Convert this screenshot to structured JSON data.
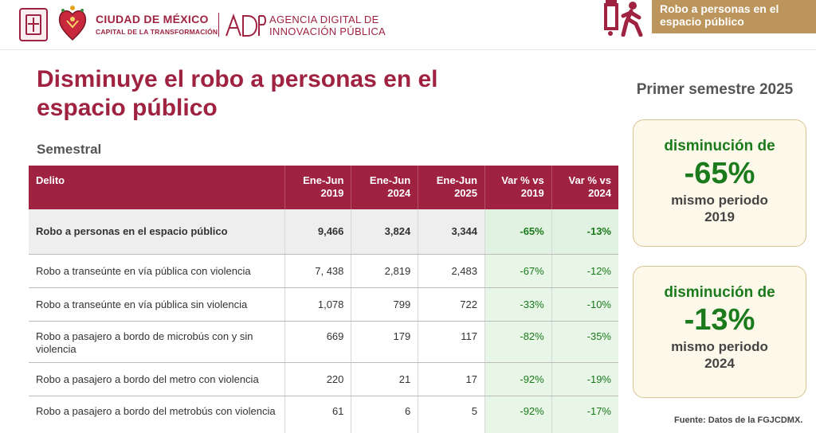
{
  "header": {
    "city_name": "CIUDAD DE MÉXICO",
    "city_tagline": "CAPITAL DE LA TRANSFORMACIÓN",
    "agency_name_1": "AGENCIA DIGITAL DE",
    "agency_name_2": "INNOVACIÓN PÚBLICA",
    "top_label": "Robo a personas en el espacio público",
    "brand_color": "#9f2241",
    "accent_color": "#bc955c",
    "icons": [
      "city-shield-icon",
      "heart-emblem-icon",
      "adip-logo-icon",
      "pedestrian-robbery-icon"
    ]
  },
  "title": "Disminuye el robo a personas en el espacio público",
  "subtitle": "Semestral",
  "table": {
    "headers": {
      "delito": "Delito",
      "col1_a": "Ene-Jun",
      "col1_b": "2019",
      "col2_a": "Ene-Jun",
      "col2_b": "2024",
      "col3_a": "Ene-Jun",
      "col3_b": "2025",
      "col4_a": "Var % vs",
      "col4_b": "2019",
      "col5_a": "Var % vs",
      "col5_b": "2024"
    },
    "rows": [
      {
        "delito": "Robo a personas en el espacio público",
        "y2019": "9,466",
        "y2024": "3,824",
        "y2025": "3,344",
        "var2019": "-65%",
        "var2024": "-13%"
      },
      {
        "delito": "Robo a transeúnte en vía pública con violencia",
        "y2019": "7, 438",
        "y2024": "2,819",
        "y2025": "2,483",
        "var2019": "-67%",
        "var2024": "-12%"
      },
      {
        "delito": "Robo a transeúnte en vía pública sin violencia",
        "y2019": "1,078",
        "y2024": "799",
        "y2025": "722",
        "var2019": "-33%",
        "var2024": "-10%"
      },
      {
        "delito": "Robo a pasajero a bordo de microbús con y sin violencia",
        "y2019": "669",
        "y2024": "179",
        "y2025": "117",
        "var2019": "-82%",
        "var2024": "-35%"
      },
      {
        "delito": "Robo a pasajero a bordo del metro con violencia",
        "y2019": "220",
        "y2024": "21",
        "y2025": "17",
        "var2019": "-92%",
        "var2024": "-19%"
      },
      {
        "delito": "Robo a pasajero a bordo del metrobús con violencia",
        "y2019": "61",
        "y2024": "6",
        "y2025": "5",
        "var2019": "-92%",
        "var2024": "-17%"
      }
    ]
  },
  "summary": {
    "period": "Primer semestre 2025",
    "card1": {
      "lead": "disminución de",
      "value": "-65%",
      "tail": "mismo periodo 2019"
    },
    "card2": {
      "lead": "disminución de",
      "value": "-13%",
      "tail": "mismo periodo 2024"
    }
  },
  "source": "Fuente: Datos de la FGJCDMX."
}
